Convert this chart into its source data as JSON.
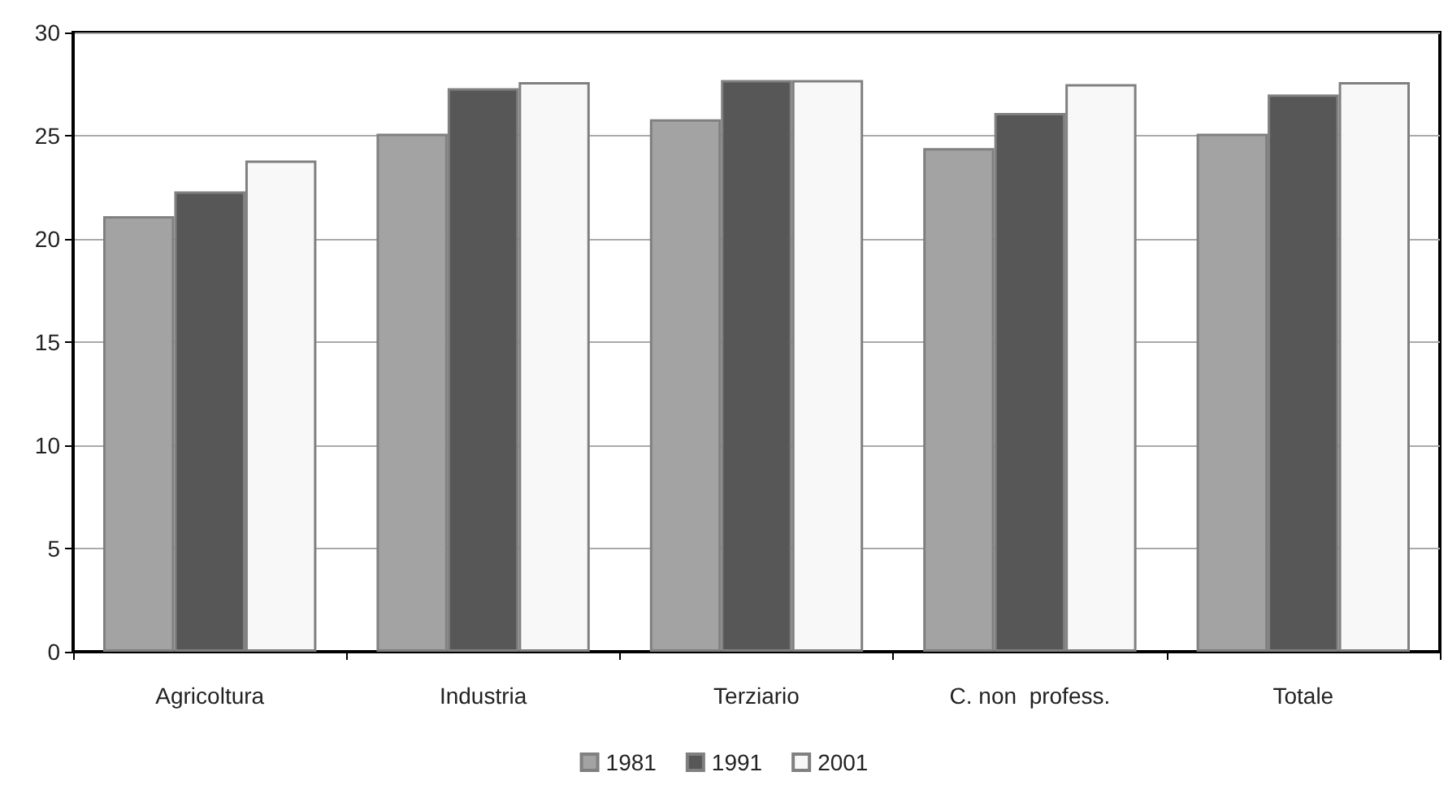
{
  "chart_data": {
    "type": "bar",
    "categories": [
      "Agricoltura",
      "Industria",
      "Terziario",
      "C. non  profess.",
      "Totale"
    ],
    "series": [
      {
        "name": "1981",
        "color": "#a3a3a3",
        "values": [
          21.1,
          25.1,
          25.8,
          24.4,
          25.1
        ]
      },
      {
        "name": "1991",
        "color": "#575757",
        "values": [
          22.3,
          27.3,
          27.7,
          26.1,
          27.0
        ]
      },
      {
        "name": "2001",
        "color": "#f8f8f8",
        "values": [
          23.8,
          27.6,
          27.7,
          27.5,
          27.6
        ]
      }
    ],
    "ylim": [
      0,
      30
    ],
    "yticks": [
      0,
      5,
      10,
      15,
      20,
      25,
      30
    ],
    "grid": "y",
    "legend": "bottom"
  }
}
